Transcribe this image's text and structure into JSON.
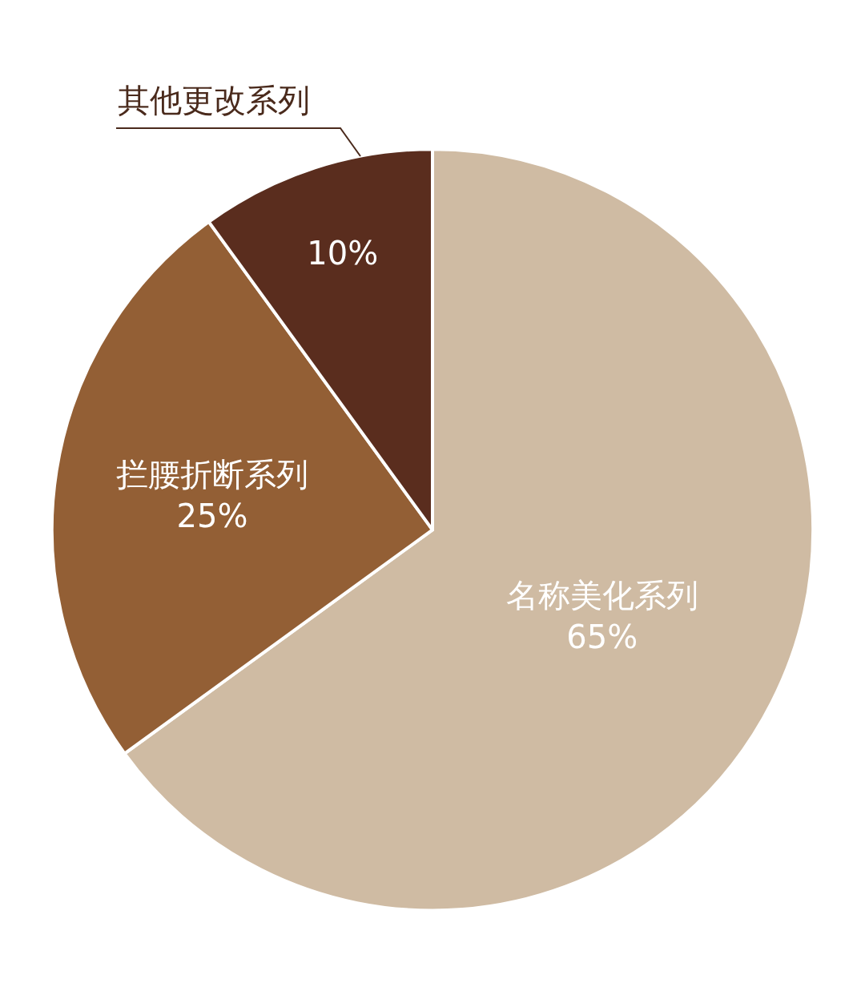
{
  "chart_data": {
    "type": "pie",
    "categories": [
      "名称美化系列",
      "拦腰折断系列",
      "其他更改系列"
    ],
    "values": [
      65,
      25,
      10
    ],
    "value_labels": [
      "65%",
      "25%",
      "10%"
    ],
    "colors": [
      "#cfbba3",
      "#935f35",
      "#5a2d1e"
    ],
    "legend": false
  }
}
